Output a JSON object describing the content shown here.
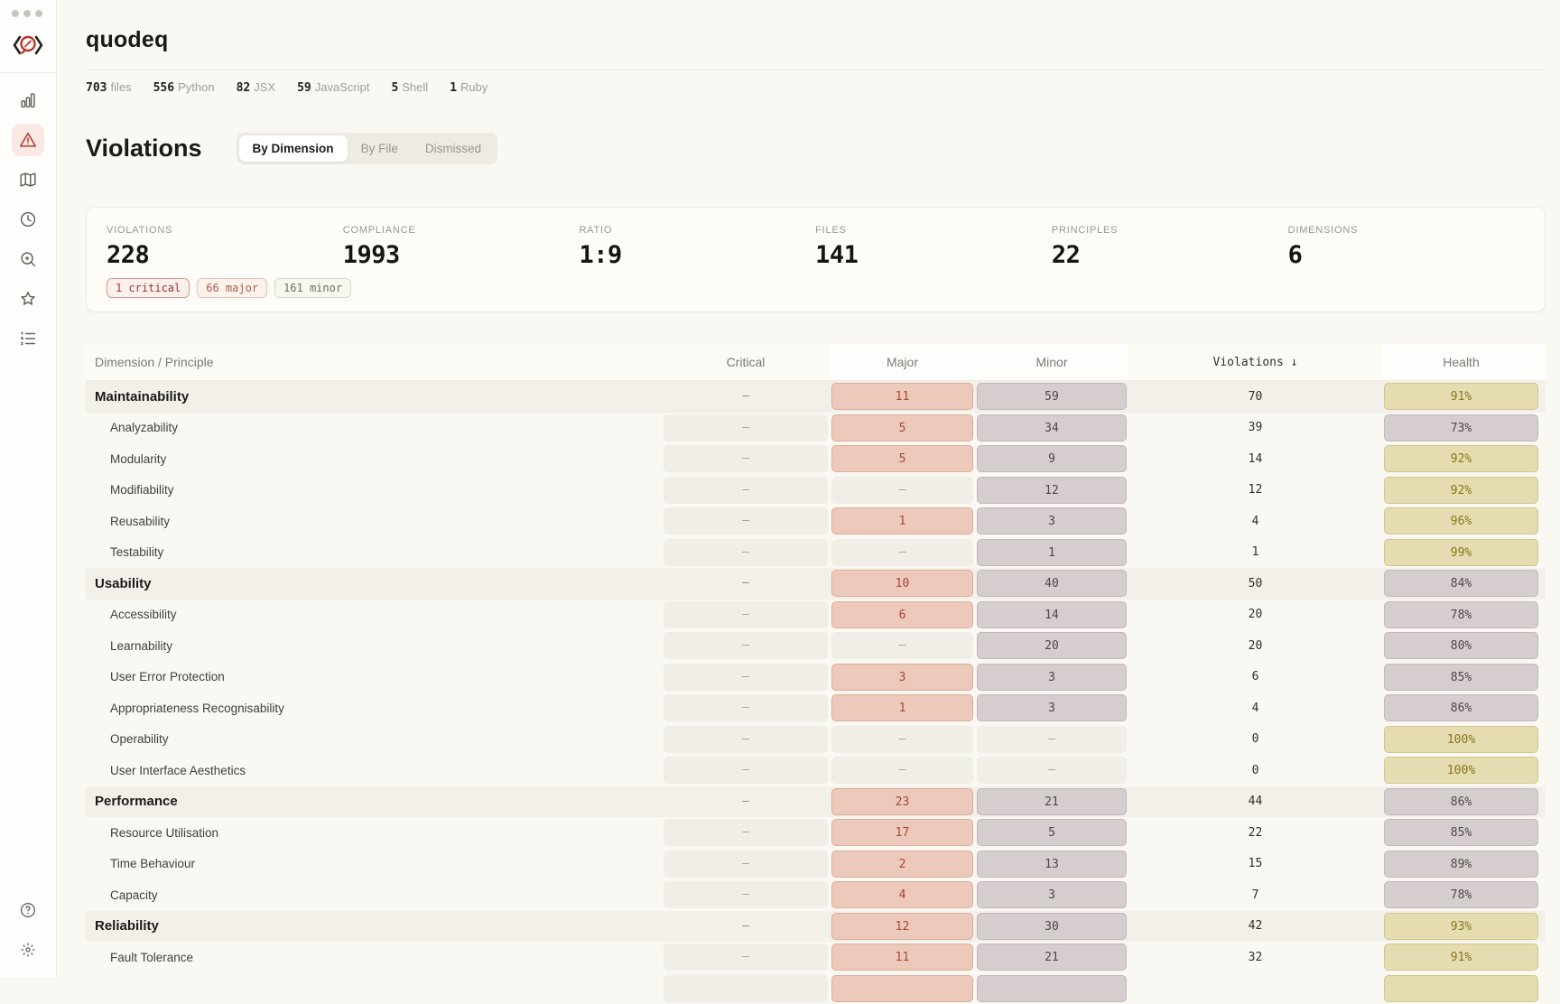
{
  "window": {
    "dots": 3
  },
  "sidebar": {
    "logo_icon": "quodeq-compass-logo",
    "nav_icons": [
      "bar-chart-icon",
      "warning-triangle-icon",
      "map-icon",
      "clock-icon",
      "zoom-in-icon",
      "star-icon",
      "ordered-list-icon"
    ],
    "active_icon": "warning-triangle-icon",
    "bottom_icons": [
      "help-circle-icon",
      "brightness-icon"
    ]
  },
  "header": {
    "title": "quodeq",
    "file_stats": [
      {
        "value": "703",
        "label": "files"
      },
      {
        "value": "556",
        "label": "Python"
      },
      {
        "value": "82",
        "label": "JSX"
      },
      {
        "value": "59",
        "label": "JavaScript"
      },
      {
        "value": "5",
        "label": "Shell"
      },
      {
        "value": "1",
        "label": "Ruby"
      }
    ]
  },
  "violations_section": {
    "heading": "Violations",
    "tabs": [
      {
        "label": "By Dimension",
        "active": true
      },
      {
        "label": "By File",
        "active": false
      },
      {
        "label": "Dismissed",
        "active": false
      }
    ],
    "summary": [
      {
        "label": "VIOLATIONS",
        "value": "228"
      },
      {
        "label": "COMPLIANCE",
        "value": "1993"
      },
      {
        "label": "RATIO",
        "value": "1:9"
      },
      {
        "label": "FILES",
        "value": "141"
      },
      {
        "label": "PRINCIPLES",
        "value": "22"
      },
      {
        "label": "DIMENSIONS",
        "value": "6"
      }
    ],
    "severity_badges": [
      {
        "label": "1 critical",
        "variant": "critical"
      },
      {
        "label": "66 major",
        "variant": "major"
      },
      {
        "label": "161 minor",
        "variant": "minor"
      }
    ]
  },
  "table": {
    "columns": [
      "Dimension / Principle",
      "Critical",
      "Major",
      "Minor",
      "Violations ↓",
      "Health"
    ],
    "rows": [
      {
        "label": "Maintainability",
        "type": "dimension",
        "critical": "–",
        "major": "11",
        "minor": "59",
        "violations": "70",
        "health": "91%"
      },
      {
        "label": "Analyzability",
        "type": "principle",
        "critical": "–",
        "major": "5",
        "minor": "34",
        "violations": "39",
        "health": "73%"
      },
      {
        "label": "Modularity",
        "type": "principle",
        "critical": "–",
        "major": "5",
        "minor": "9",
        "violations": "14",
        "health": "92%"
      },
      {
        "label": "Modifiability",
        "type": "principle",
        "critical": "–",
        "major": "–",
        "minor": "12",
        "violations": "12",
        "health": "92%"
      },
      {
        "label": "Reusability",
        "type": "principle",
        "critical": "–",
        "major": "1",
        "minor": "3",
        "violations": "4",
        "health": "96%"
      },
      {
        "label": "Testability",
        "type": "principle",
        "critical": "–",
        "major": "–",
        "minor": "1",
        "violations": "1",
        "health": "99%"
      },
      {
        "label": "Usability",
        "type": "dimension",
        "critical": "–",
        "major": "10",
        "minor": "40",
        "violations": "50",
        "health": "84%"
      },
      {
        "label": "Accessibility",
        "type": "principle",
        "critical": "–",
        "major": "6",
        "minor": "14",
        "violations": "20",
        "health": "78%"
      },
      {
        "label": "Learnability",
        "type": "principle",
        "critical": "–",
        "major": "–",
        "minor": "20",
        "violations": "20",
        "health": "80%"
      },
      {
        "label": "User Error Protection",
        "type": "principle",
        "critical": "–",
        "major": "3",
        "minor": "3",
        "violations": "6",
        "health": "85%"
      },
      {
        "label": "Appropriateness Recognisability",
        "type": "principle",
        "critical": "–",
        "major": "1",
        "minor": "3",
        "violations": "4",
        "health": "86%"
      },
      {
        "label": "Operability",
        "type": "principle",
        "critical": "–",
        "major": "–",
        "minor": "–",
        "violations": "0",
        "health": "100%"
      },
      {
        "label": "User Interface Aesthetics",
        "type": "principle",
        "critical": "–",
        "major": "–",
        "minor": "–",
        "violations": "0",
        "health": "100%"
      },
      {
        "label": "Performance",
        "type": "dimension",
        "critical": "–",
        "major": "23",
        "minor": "21",
        "violations": "44",
        "health": "86%"
      },
      {
        "label": "Resource Utilisation",
        "type": "principle",
        "critical": "–",
        "major": "17",
        "minor": "5",
        "violations": "22",
        "health": "85%"
      },
      {
        "label": "Time Behaviour",
        "type": "principle",
        "critical": "–",
        "major": "2",
        "minor": "13",
        "violations": "15",
        "health": "89%"
      },
      {
        "label": "Capacity",
        "type": "principle",
        "critical": "–",
        "major": "4",
        "minor": "3",
        "violations": "7",
        "health": "78%"
      },
      {
        "label": "Reliability",
        "type": "dimension",
        "critical": "–",
        "major": "12",
        "minor": "30",
        "violations": "42",
        "health": "93%"
      },
      {
        "label": "Fault Tolerance",
        "type": "principle",
        "critical": "–",
        "major": "11",
        "minor": "21",
        "violations": "32",
        "health": "91%"
      },
      {
        "label": "",
        "type": "principle",
        "partial": true,
        "critical": "",
        "major": "",
        "minor": "",
        "violations": "",
        "health": ""
      }
    ]
  },
  "colors": {
    "accent_red": "#b23a2f",
    "chip_major_bg": "#ecc9bb",
    "chip_major_text": "#a84934",
    "chip_minor_bg": "#d6cdcf",
    "chip_health_good_bg": "#e5ddb1",
    "chip_health_good_text": "#877519",
    "background": "#faf8f3"
  }
}
